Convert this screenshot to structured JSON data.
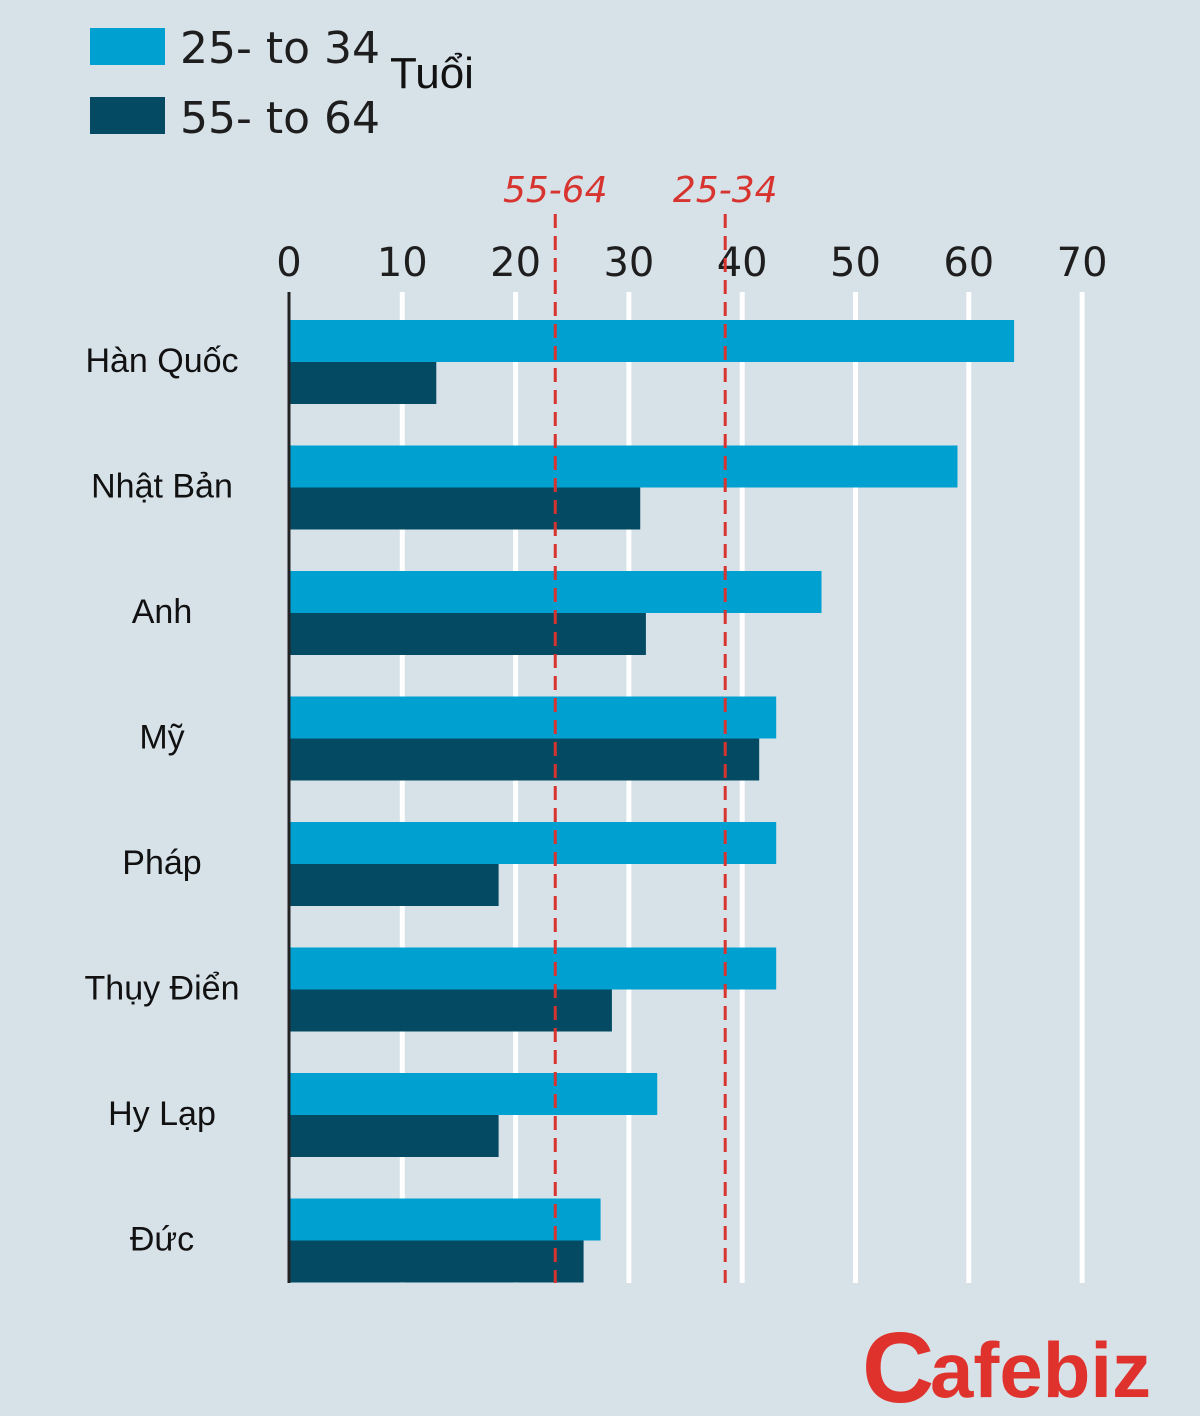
{
  "chart_data": {
    "type": "bar",
    "orientation": "horizontal",
    "unit_label": "Tuổi",
    "categories": [
      "Hàn Quốc",
      "Nhật Bản",
      "Anh",
      "Mỹ",
      "Pháp",
      "Thụy Điển",
      "Hy Lạp",
      "Đức"
    ],
    "series": [
      {
        "name": "25- to 34",
        "color": "#00a1d1",
        "values": [
          64,
          59,
          47,
          43,
          43,
          43,
          32.5,
          27.5
        ]
      },
      {
        "name": "55- to 64",
        "color": "#044a63",
        "values": [
          13,
          31,
          31.5,
          41.5,
          18.5,
          28.5,
          18.5,
          26
        ]
      }
    ],
    "x_ticks": [
      "0",
      "10",
      "20",
      "30",
      "40",
      "50",
      "60",
      "70"
    ],
    "xlim": [
      0,
      70
    ],
    "grid": true,
    "legend_position": "top-left",
    "reference_lines": [
      {
        "label": "55-64",
        "value": 23.5,
        "color": "#d8342f"
      },
      {
        "label": "25-34",
        "value": 38.5,
        "color": "#d8342f"
      }
    ]
  },
  "logo": {
    "text": "Cafebiz",
    "first": "C",
    "rest": "afebiz"
  }
}
